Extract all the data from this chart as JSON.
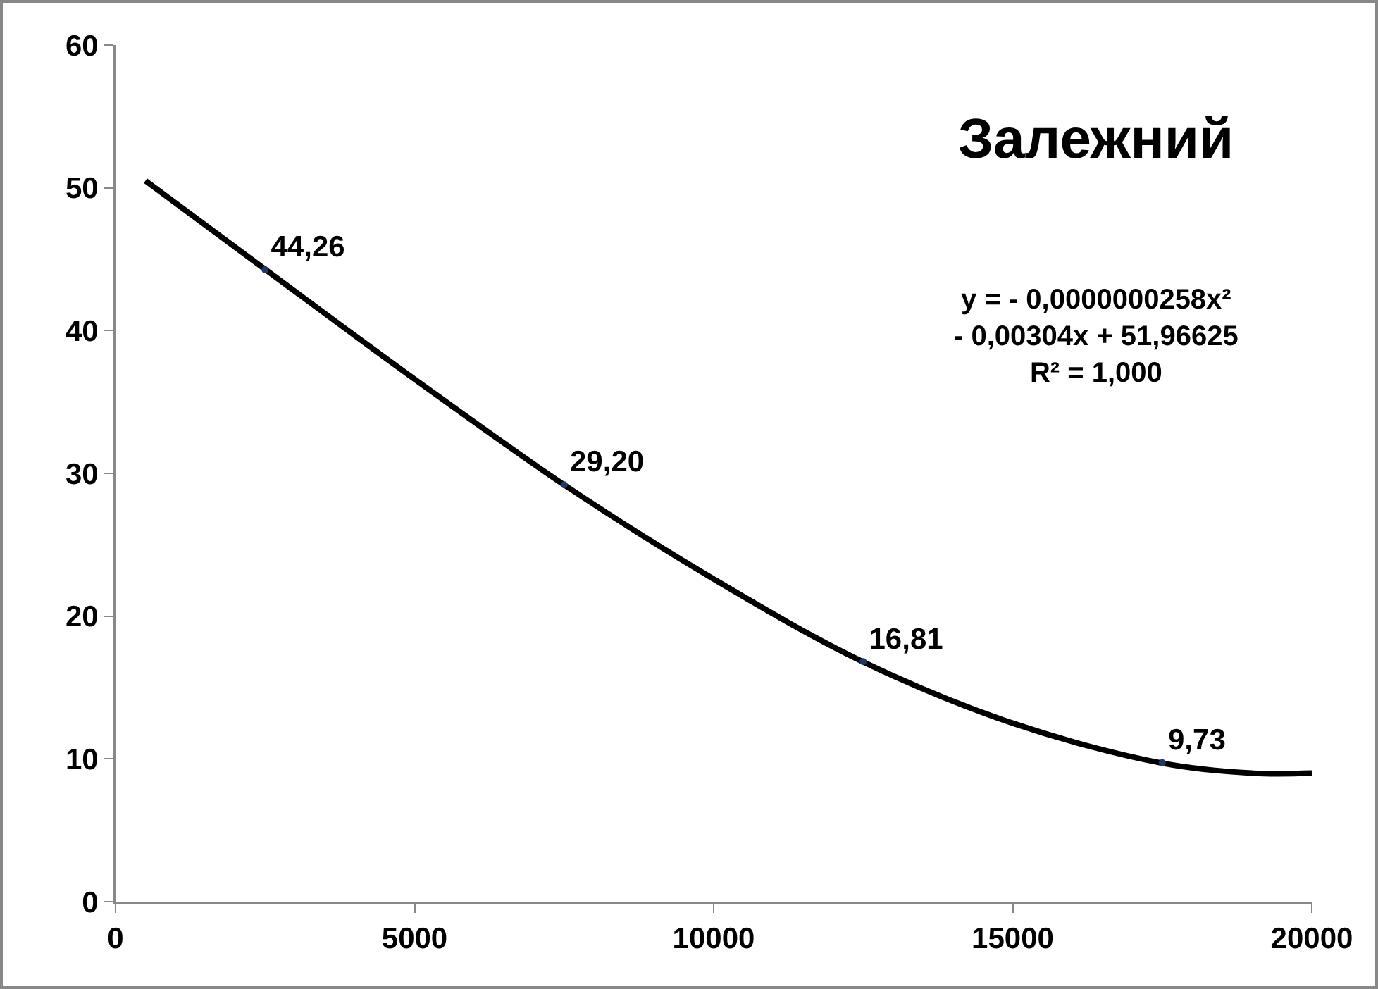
{
  "chart_data": {
    "type": "scatter",
    "xlim": [
      0,
      20000
    ],
    "ylim": [
      0,
      60
    ],
    "xticks": [
      0,
      5000,
      10000,
      15000,
      20000
    ],
    "yticks": [
      0,
      10,
      20,
      30,
      40,
      50,
      60
    ],
    "grid": false,
    "series": [
      {
        "type": "line",
        "color": "#000000",
        "marker": "none",
        "line_style": "solid",
        "x": [
          500,
          2500,
          5000,
          7500,
          10000,
          12500,
          15000,
          17500,
          19000,
          20000
        ],
        "values": [
          50.5,
          44.3,
          36.6,
          29.2,
          22.6,
          16.8,
          12.5,
          9.7,
          9.0,
          9.0
        ]
      },
      {
        "type": "scatter",
        "color": "#1f3864",
        "marker": "circle",
        "x": [
          2500,
          7500,
          12500,
          17500
        ],
        "values": [
          44.26,
          29.2,
          16.81,
          9.73
        ],
        "value_labels": [
          "44,26",
          "29,20",
          "16,81",
          "9,73"
        ]
      }
    ],
    "annotations": [
      "Залежний",
      "y = - 0,0000000258x²\n- 0,00304x + 51,96625\nR² = 1,000"
    ]
  }
}
